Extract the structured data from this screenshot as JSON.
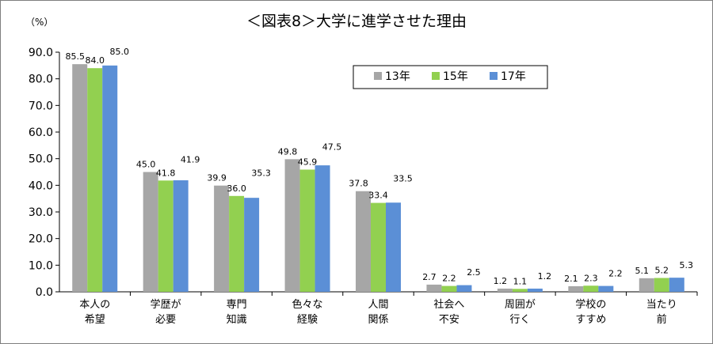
{
  "chart_data": {
    "type": "bar",
    "title": "＜図表8＞大学に進学させた理由",
    "unit_label": "（%）",
    "ylim": [
      0,
      90
    ],
    "yticks": [
      "0.0",
      "10.0",
      "20.0",
      "30.0",
      "40.0",
      "50.0",
      "60.0",
      "70.0",
      "80.0",
      "90.0"
    ],
    "categories": [
      [
        "本人の",
        "希望"
      ],
      [
        "学歴が",
        "必要"
      ],
      [
        "専門",
        "知識"
      ],
      [
        "色々な",
        "経験"
      ],
      [
        "人間",
        "関係"
      ],
      [
        "社会へ",
        "不安"
      ],
      [
        "周囲が",
        "行く"
      ],
      [
        "学校の",
        "すすめ"
      ],
      [
        "当たり",
        "前"
      ]
    ],
    "series": [
      {
        "name": "13年",
        "color": "#a6a6a6",
        "values": [
          85.5,
          45.0,
          39.9,
          49.8,
          37.8,
          2.7,
          1.2,
          2.1,
          5.1
        ],
        "labels": [
          "85.5",
          "45.0",
          "39.9",
          "49.8",
          "37.8",
          "2.7",
          "1.2",
          "2.1",
          "5.1"
        ]
      },
      {
        "name": "15年",
        "color": "#92d050",
        "values": [
          84.0,
          41.8,
          36.0,
          45.9,
          33.4,
          2.2,
          1.1,
          2.3,
          5.2
        ],
        "labels": [
          "84.0",
          "41.8",
          "36.0",
          "45.9",
          "33.4",
          "2.2",
          "1.1",
          "2.3",
          "5.2"
        ]
      },
      {
        "name": "17年",
        "color": "#5b8fd6",
        "values": [
          85.0,
          41.9,
          35.3,
          47.5,
          33.5,
          2.5,
          1.2,
          2.2,
          5.3
        ],
        "labels": [
          "85.0",
          "41.9",
          "35.3",
          "47.5",
          "33.5",
          "2.5",
          "1.2",
          "2.2",
          "5.3"
        ]
      }
    ],
    "legend": "top-right",
    "grid": false
  }
}
